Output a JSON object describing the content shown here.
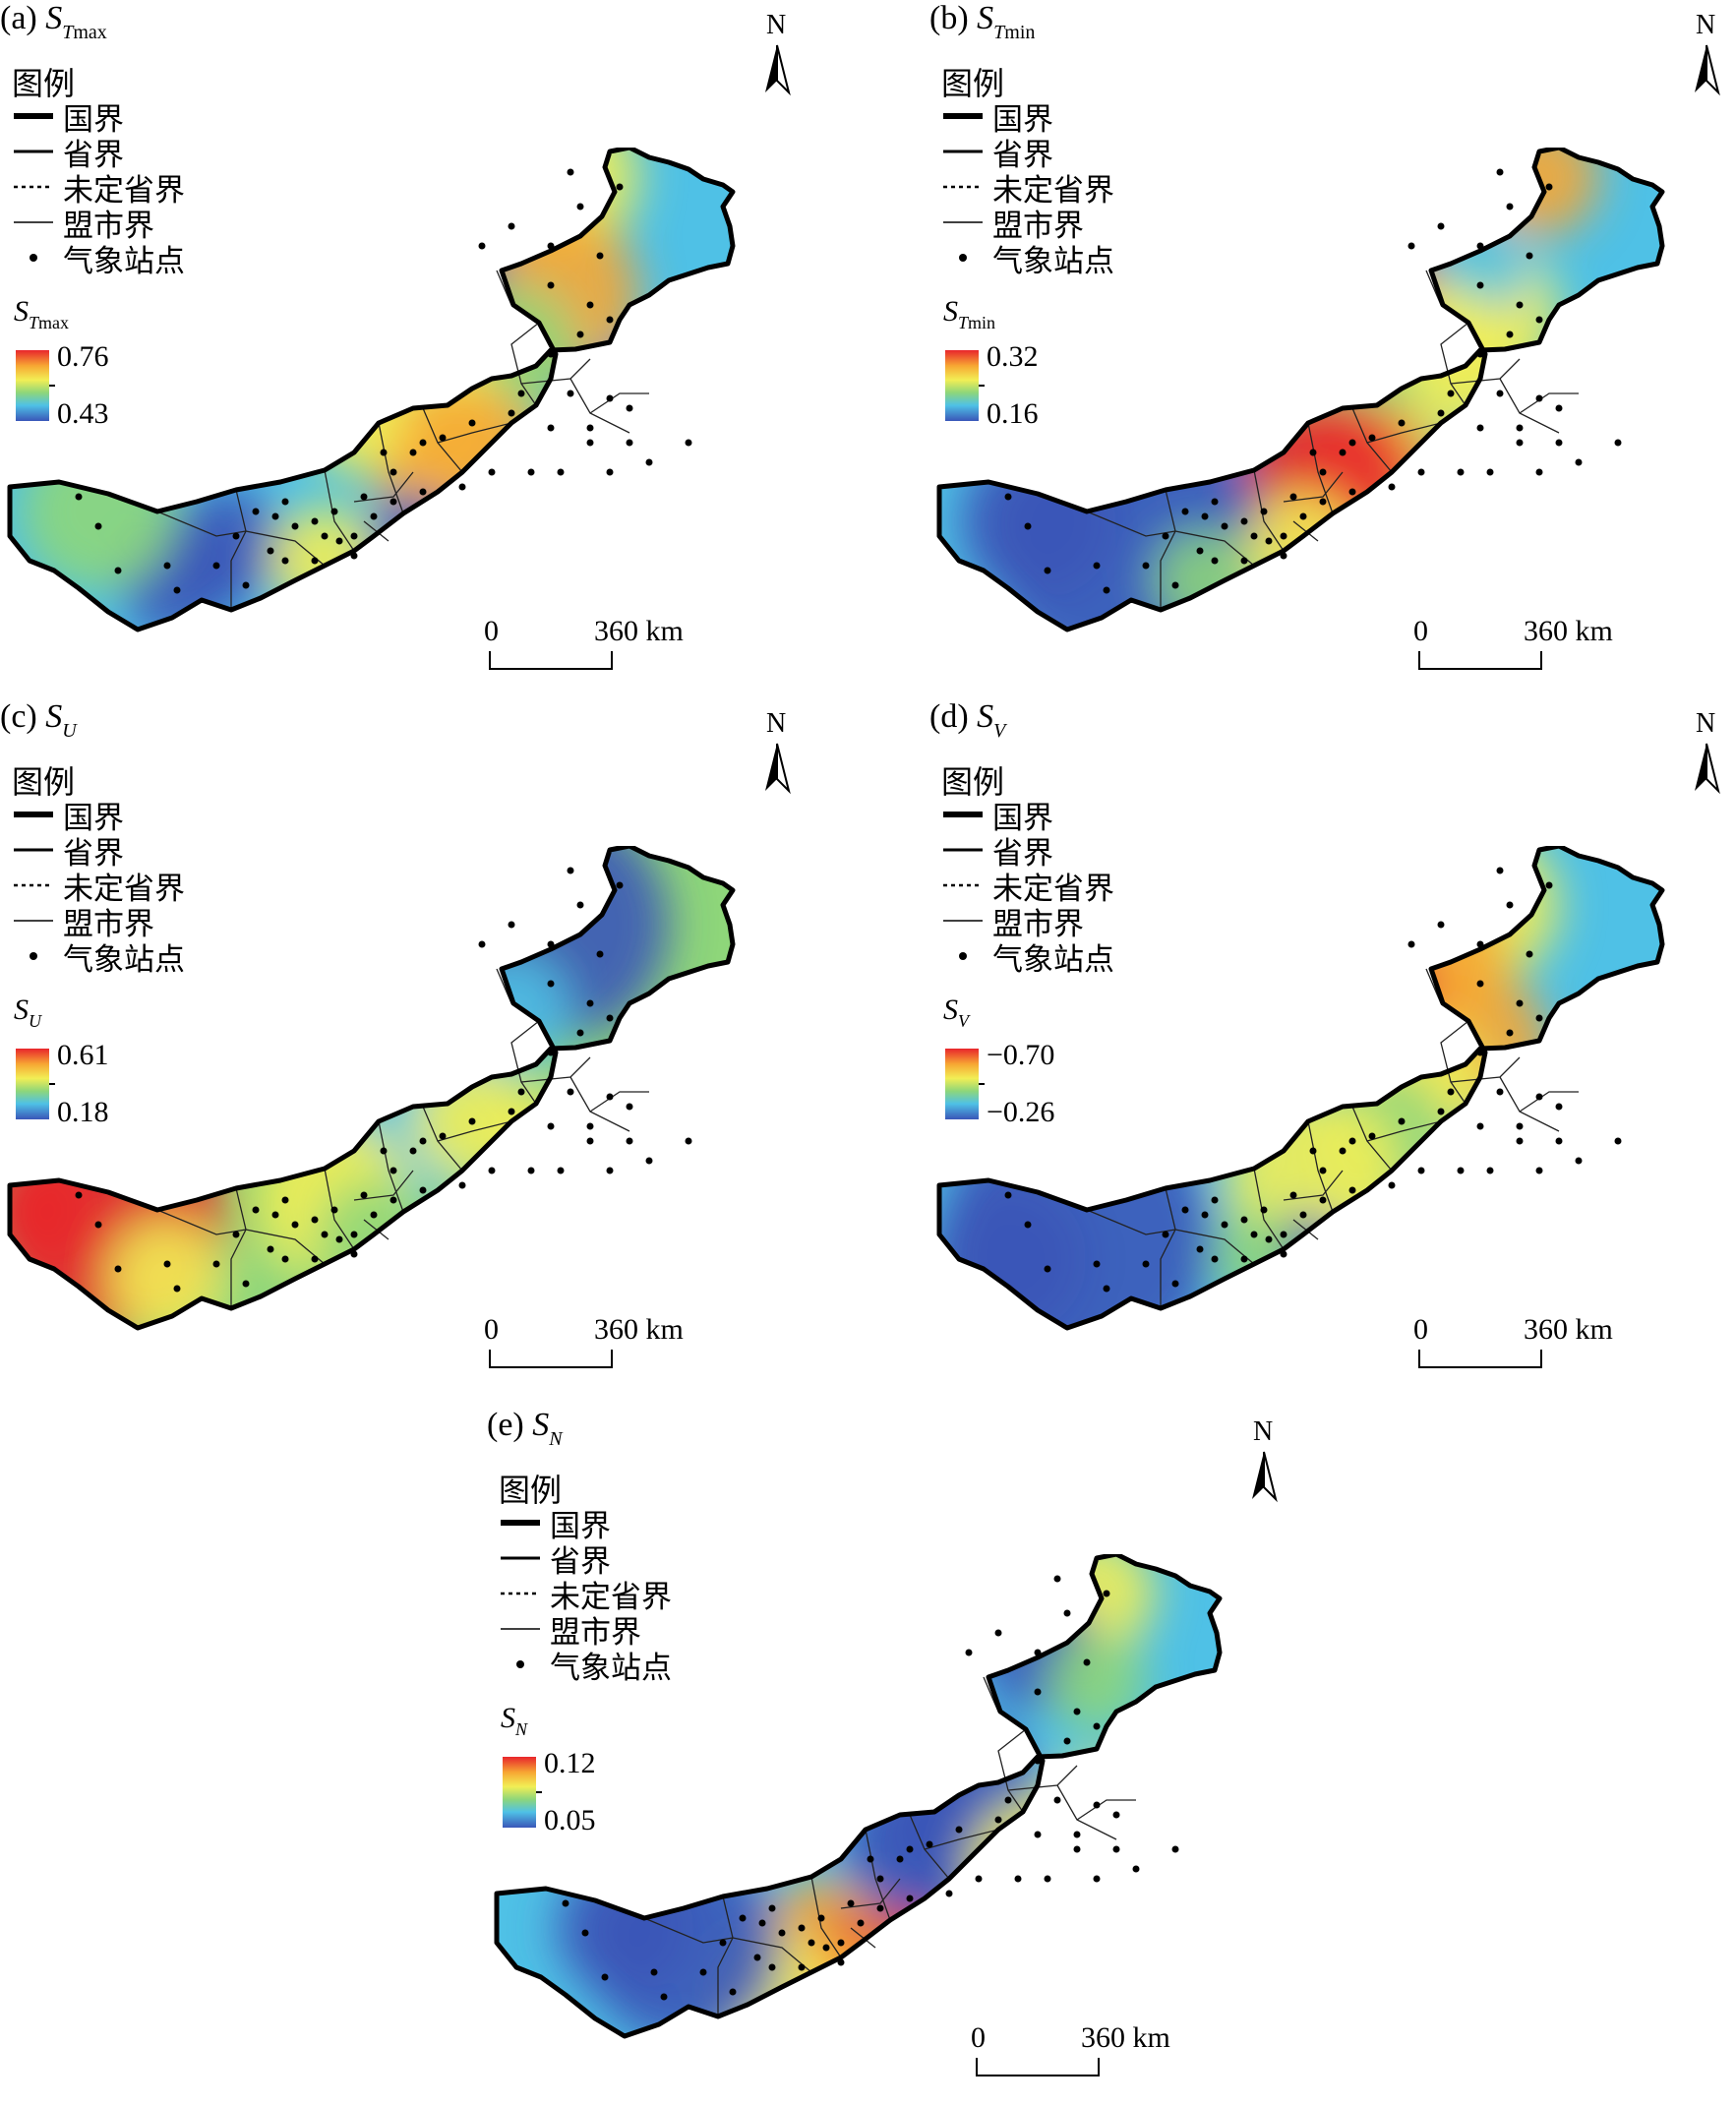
{
  "colors": {
    "high": "#e8262c",
    "mid_high": "#f7a733",
    "mid": "#f2ee55",
    "mid_low": "#8ed67a",
    "low_mid": "#4fc1e6",
    "low": "#3a56b8"
  },
  "legend": {
    "title": "图例",
    "items": [
      {
        "label": "国界",
        "symbol": "thick-line"
      },
      {
        "label": "省界",
        "symbol": "line"
      },
      {
        "label": "未定省界",
        "symbol": "dashed-line"
      },
      {
        "label": "盟市界",
        "symbol": "thin-line"
      },
      {
        "label": "气象站点",
        "symbol": "dot"
      }
    ]
  },
  "scale_bar": {
    "zero": "0",
    "distance": "360 km"
  },
  "north_arrow": {
    "label": "N"
  },
  "panels": [
    {
      "tag": "(a)",
      "symbol": "S",
      "sub": "T",
      "subsub": "max",
      "legend_max": "0.76",
      "legend_min": "0.43"
    },
    {
      "tag": "(b)",
      "symbol": "S",
      "sub": "T",
      "subsub": "min",
      "legend_max": "0.32",
      "legend_min": "0.16"
    },
    {
      "tag": "(c)",
      "symbol": "S",
      "sub": "U",
      "subsub": "",
      "legend_max": "0.61",
      "legend_min": "0.18"
    },
    {
      "tag": "(d)",
      "symbol": "S",
      "sub": "V",
      "subsub": "",
      "legend_max": "−0.70",
      "legend_min": "−0.26"
    },
    {
      "tag": "(e)",
      "symbol": "S",
      "sub": "N",
      "subsub": "",
      "legend_max": "0.12",
      "legend_min": "0.05"
    }
  ]
}
